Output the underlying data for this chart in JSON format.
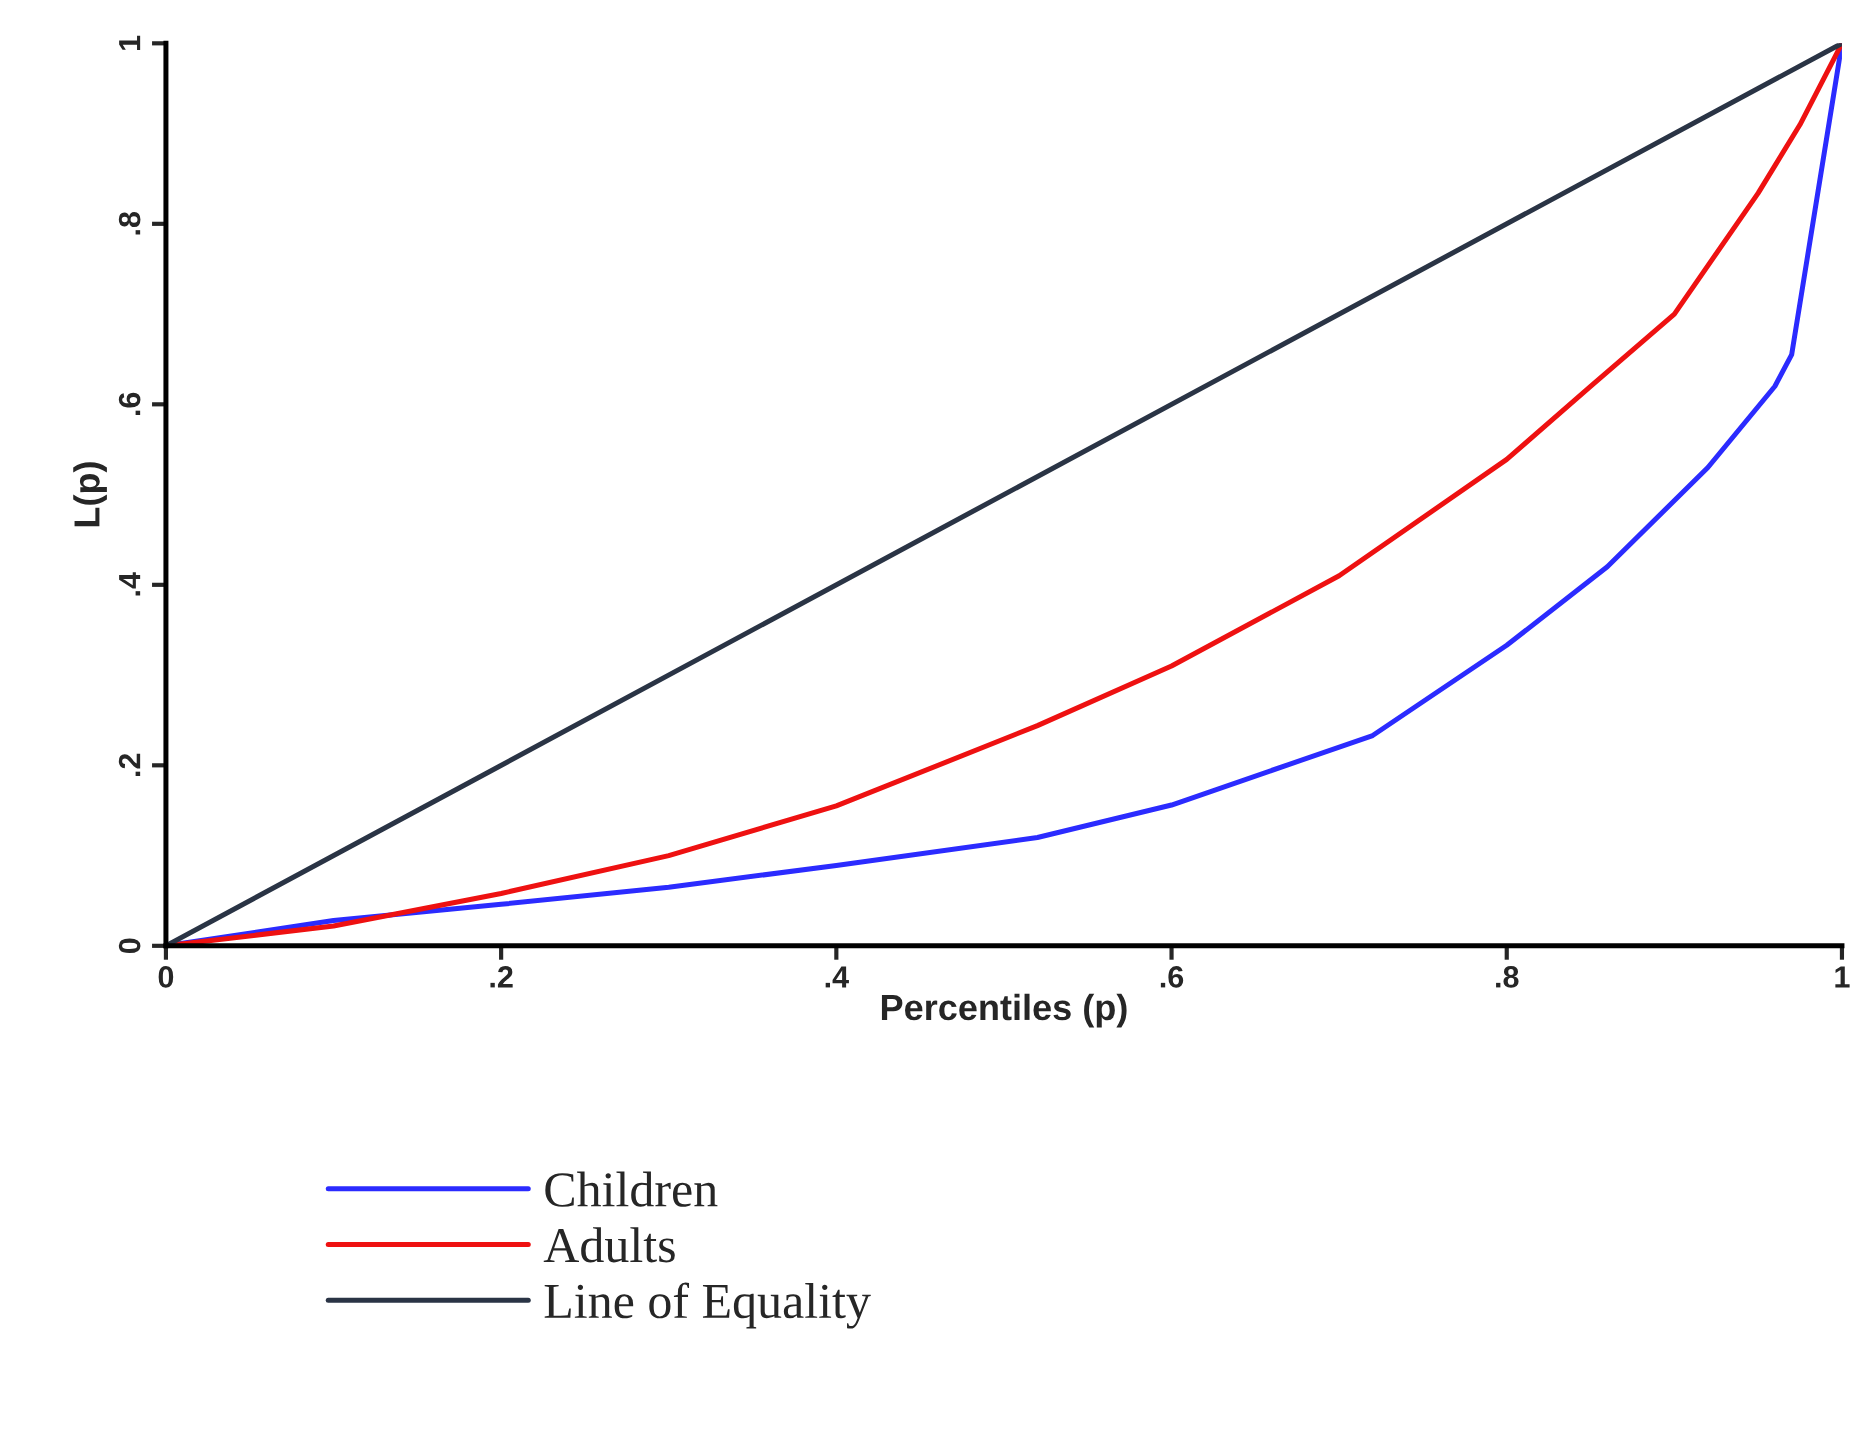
{
  "chart_data": {
    "type": "line",
    "xlabel": "Percentiles (p)",
    "ylabel": "L(p)",
    "xlim": [
      0,
      1
    ],
    "ylim": [
      0,
      1
    ],
    "xticks": [
      0,
      {
        "value": 0.2,
        "label": ".2"
      },
      {
        "value": 0.4,
        "label": ".4"
      },
      {
        "value": 0.6,
        "label": ".6"
      },
      {
        "value": 0.8,
        "label": ".8"
      },
      1
    ],
    "yticks": [
      0,
      {
        "value": 0.2,
        "label": ".2"
      },
      {
        "value": 0.4,
        "label": ".4"
      },
      {
        "value": 0.6,
        "label": ".6"
      },
      {
        "value": 0.8,
        "label": ".8"
      },
      1
    ],
    "grid": false,
    "legend": "bottom",
    "marker": "none",
    "line_style": "solid",
    "series": [
      {
        "name": "Children",
        "color": "#2b2bff",
        "x": [
          0,
          0.1,
          0.2,
          0.3,
          0.4,
          0.52,
          0.6,
          0.72,
          0.8,
          0.86,
          0.92,
          0.96,
          0.97,
          1
        ],
        "values": [
          0,
          0.028,
          0.046,
          0.065,
          0.089,
          0.12,
          0.156,
          0.233,
          0.333,
          0.42,
          0.53,
          0.62,
          0.655,
          1
        ]
      },
      {
        "name": "Adults",
        "color": "#ee1111",
        "x": [
          0,
          0.1,
          0.2,
          0.3,
          0.4,
          0.52,
          0.6,
          0.7,
          0.8,
          0.85,
          0.9,
          0.95,
          0.975,
          1
        ],
        "values": [
          0,
          0.022,
          0.058,
          0.1,
          0.155,
          0.244,
          0.31,
          0.41,
          0.539,
          0.62,
          0.7,
          0.834,
          0.91,
          1
        ]
      },
      {
        "name": "Line of Equality",
        "color": "#2a3445",
        "x": [
          0,
          1
        ],
        "values": [
          0,
          1
        ]
      }
    ]
  }
}
